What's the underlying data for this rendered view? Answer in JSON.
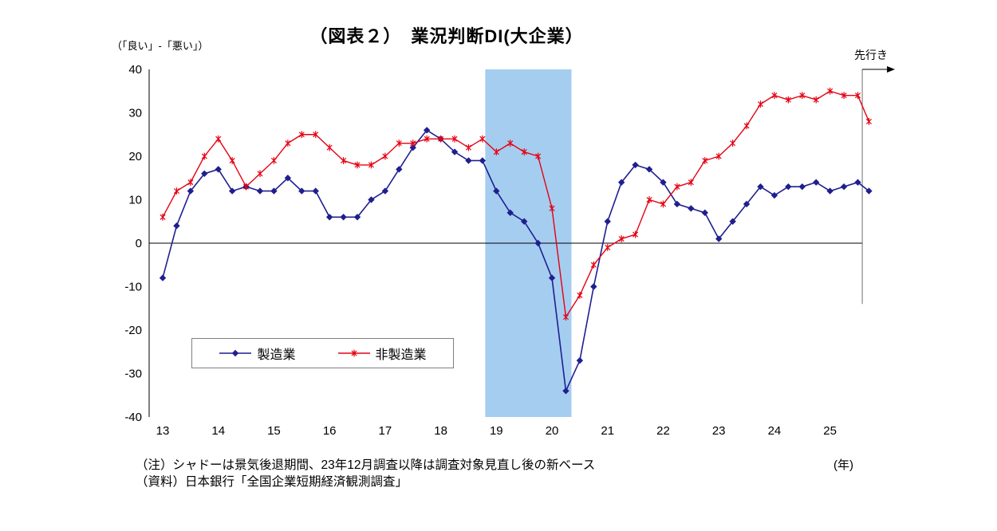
{
  "page": {
    "title": "（図表２）　業況判断DI(大企業）",
    "y_unit_label": "（「良い」-「悪い」）",
    "x_unit_label": "(年)",
    "forecast_label": "先行き",
    "notes": [
      "（注）シャドーは景気後退期間、23年12月調査以降は調査対象見直し後の新ベース",
      "（資料）日本銀行「全国企業短期経済観測調査」"
    ]
  },
  "chart_data": {
    "type": "line",
    "title": "（図表２）　業況判断DI(大企業）",
    "ylabel": "（「良い」-「悪い」）",
    "xlabel": "(年)",
    "ylim": [
      -40,
      40
    ],
    "ytick_interval": 10,
    "xticks": [
      13,
      14,
      15,
      16,
      17,
      18,
      19,
      20,
      21,
      22,
      23,
      24,
      25
    ],
    "x_start": 13,
    "x_step": 0.25,
    "grid": false,
    "legend_position": "inside-bottom-left-box",
    "shaded_region": {
      "start": 18.8,
      "end": 20.35,
      "color": "#a5cdf0",
      "meaning": "景気後退期間"
    },
    "series": [
      {
        "id": "manufacturing",
        "name": "製造業",
        "color": "#1f1f8f",
        "marker": "diamond",
        "values": [
          -8,
          4,
          12,
          16,
          17,
          12,
          13,
          12,
          12,
          15,
          12,
          12,
          6,
          6,
          6,
          10,
          12,
          17,
          22,
          26,
          24,
          21,
          19,
          19,
          12,
          7,
          5,
          0,
          -8,
          -34,
          -27,
          -10,
          5,
          14,
          18,
          17,
          14,
          9,
          8,
          7,
          1,
          5,
          9,
          13,
          11,
          13,
          13,
          14,
          12,
          13,
          14
        ],
        "forecast": {
          "label": "先行き",
          "value": 12
        }
      },
      {
        "id": "non-manufacturing",
        "name": "非製造業",
        "color": "#e60012",
        "marker": "asterisk",
        "values": [
          6,
          12,
          14,
          20,
          24,
          19,
          13,
          16,
          19,
          23,
          25,
          25,
          22,
          19,
          18,
          18,
          20,
          23,
          23,
          24,
          24,
          24,
          22,
          24,
          21,
          23,
          21,
          20,
          8,
          -17,
          -12,
          -5,
          -1,
          1,
          2,
          10,
          9,
          13,
          14,
          19,
          20,
          23,
          27,
          32,
          34,
          33,
          34,
          33,
          35,
          34,
          34
        ],
        "forecast": {
          "label": "先行き",
          "value": 28
        }
      }
    ]
  }
}
